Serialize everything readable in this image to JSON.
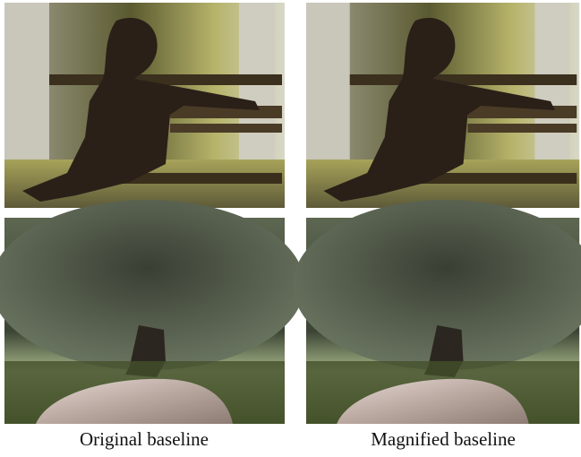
{
  "figure": {
    "captions": [
      "Original baseline",
      "Magnified baseline"
    ]
  }
}
